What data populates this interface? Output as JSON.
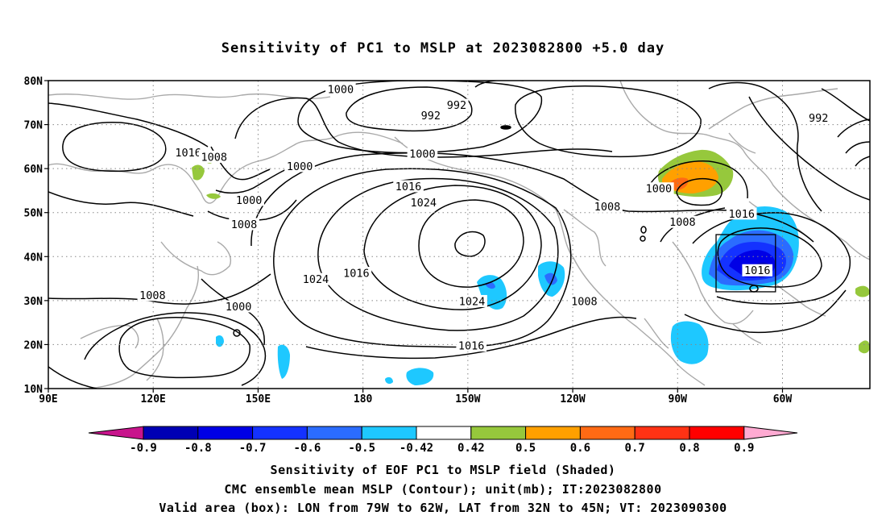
{
  "title": "Sensitivity of PC1 to MSLP at 2023082800 +5.0 day",
  "map": {
    "lat_labels": [
      "80N",
      "70N",
      "60N",
      "50N",
      "40N",
      "30N",
      "20N",
      "10N"
    ],
    "lon_labels": [
      "90E",
      "120E",
      "150E",
      "180",
      "150W",
      "120W",
      "90W",
      "60W"
    ],
    "lon_range_deg_east": [
      90,
      325
    ],
    "lat_range_deg": [
      10,
      80
    ]
  },
  "contours": {
    "labels": [
      {
        "text": "1000",
        "lon": 173.6,
        "lat": 78.0
      },
      {
        "text": "992",
        "lon": 206.8,
        "lat": 74.4
      },
      {
        "text": "992",
        "lon": 199.4,
        "lat": 72.0
      },
      {
        "text": "992",
        "lon": 310.3,
        "lat": 71.5
      },
      {
        "text": "1016",
        "lon": 130.0,
        "lat": 63.6
      },
      {
        "text": "1008",
        "lon": 137.4,
        "lat": 62.6
      },
      {
        "text": "1000",
        "lon": 161.9,
        "lat": 60.5
      },
      {
        "text": "1000",
        "lon": 197.0,
        "lat": 63.3
      },
      {
        "text": "1016",
        "lon": 193.0,
        "lat": 55.9
      },
      {
        "text": "1024",
        "lon": 197.3,
        "lat": 52.2
      },
      {
        "text": "1000",
        "lon": 264.6,
        "lat": 55.4
      },
      {
        "text": "1000",
        "lon": 147.4,
        "lat": 52.8
      },
      {
        "text": "1008",
        "lon": 146.0,
        "lat": 47.3
      },
      {
        "text": "1008",
        "lon": 249.9,
        "lat": 51.3
      },
      {
        "text": "1008",
        "lon": 271.4,
        "lat": 47.8
      },
      {
        "text": "1016",
        "lon": 288.3,
        "lat": 49.7
      },
      {
        "text": "1016",
        "lon": 292.8,
        "lat": 36.8
      },
      {
        "text": "1024",
        "lon": 166.5,
        "lat": 34.8
      },
      {
        "text": "1016",
        "lon": 178.1,
        "lat": 36.2
      },
      {
        "text": "1024",
        "lon": 211.2,
        "lat": 29.8
      },
      {
        "text": "1008",
        "lon": 243.3,
        "lat": 29.8
      },
      {
        "text": "1008",
        "lon": 119.8,
        "lat": 31.2
      },
      {
        "text": "1000",
        "lon": 144.4,
        "lat": 28.6
      },
      {
        "text": "1016",
        "lon": 211.0,
        "lat": 19.7
      }
    ]
  },
  "valid_box": {
    "lon_west": "79W",
    "lon_east": "62W",
    "lat_south": "32N",
    "lat_north": "45N"
  },
  "colorbar": {
    "tick_labels": [
      "-0.9",
      "-0.8",
      "-0.7",
      "-0.6",
      "-0.5",
      "-0.42",
      "0.42",
      "0.5",
      "0.6",
      "0.7",
      "0.8",
      "0.9"
    ],
    "colors": [
      "#0000b4",
      "#0000e6",
      "#1432ff",
      "#2b6cff",
      "#1ec8ff",
      "#ffffff",
      "#96c83c",
      "#ffa000",
      "#ff6a14",
      "#ff3214",
      "#ff0000"
    ],
    "low_extend_color": "#c8148c",
    "high_extend_color": "#ffaad2"
  },
  "captions": {
    "line1": "Sensitivity of EOF PC1 to MSLP field (Shaded)",
    "line2": "CMC ensemble mean MSLP (Contour); unit(mb); IT:2023082800",
    "line3": "Valid area (box): LON from 79W to 62W, LAT from 32N to 45N; VT: 2023090300"
  }
}
